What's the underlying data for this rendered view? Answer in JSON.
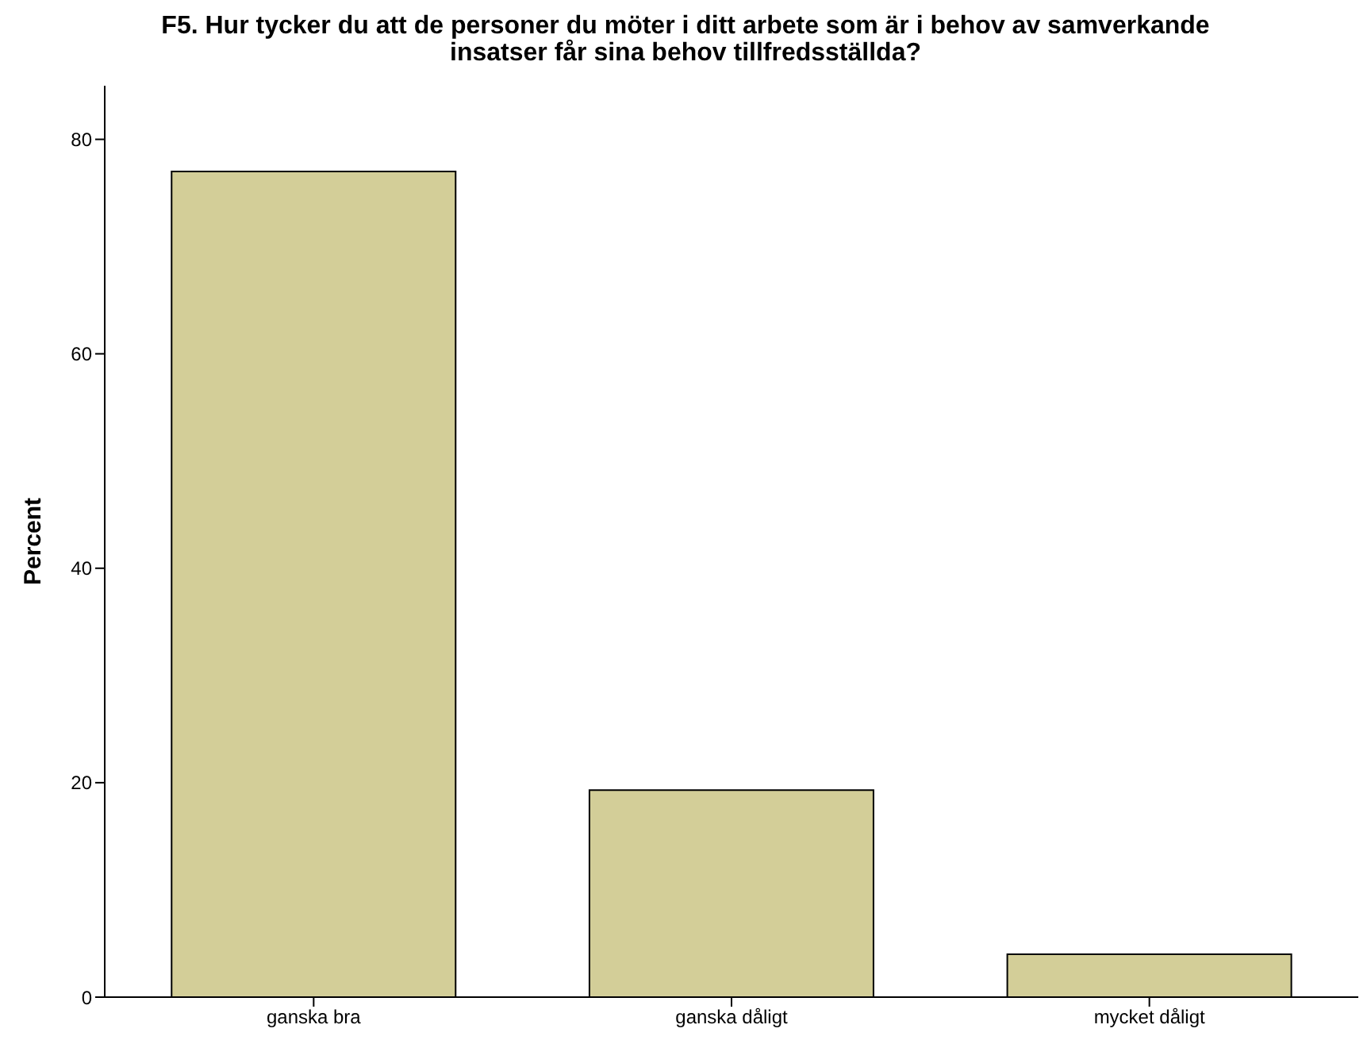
{
  "chart_data": {
    "type": "bar",
    "title": "F5. Hur tycker du att de personer du möter i ditt arbete som är i behov av samverkande insatser får sina behov tillfredsställda?",
    "ylabel": "Percent",
    "categories": [
      "ganska bra",
      "ganska dåligt",
      "mycket dåligt"
    ],
    "values": [
      77.0,
      19.3,
      4.0
    ],
    "color": "#d3ce98",
    "ylim": [
      0,
      85
    ],
    "yticks": [
      0,
      20,
      40,
      60,
      80
    ],
    "grid": false
  }
}
